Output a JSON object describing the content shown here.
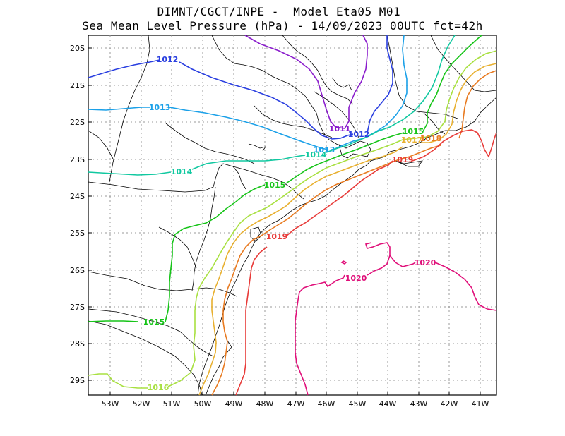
{
  "title_line1": "DIMNT/CGCT/INPE -  Model Eta05_M01_",
  "title_line2": "Sea Mean Level Pressure (hPa) - 14/09/2023 00UTC fct=42h",
  "axes": {
    "lat_labels": [
      "20S",
      "21S",
      "22S",
      "23S",
      "24S",
      "25S",
      "26S",
      "27S",
      "28S",
      "29S"
    ],
    "lon_labels": [
      "53W",
      "52W",
      "51W",
      "50W",
      "49W",
      "48W",
      "47W",
      "46W",
      "45W",
      "44W",
      "43W",
      "42W",
      "41W"
    ]
  },
  "colors": {
    "1011": "#8a1ccc",
    "1012": "#2a3fe0",
    "1013": "#1aa0e8",
    "1014": "#10c8a0",
    "1015": "#16c418",
    "1016": "#a8e040",
    "1017": "#e8b030",
    "1018": "#e87a20",
    "1019": "#e83a38",
    "1020": "#e0107a",
    "border": "#000000",
    "grid": "#9a9a9a"
  },
  "contour_labels": [
    {
      "key": "1011",
      "text": "1011"
    },
    {
      "key": "1012",
      "text": "1012"
    },
    {
      "key": "1012",
      "text": "1012"
    },
    {
      "key": "1013",
      "text": "1013"
    },
    {
      "key": "1013",
      "text": "1013"
    },
    {
      "key": "1014",
      "text": "1014"
    },
    {
      "key": "1014",
      "text": "1014"
    },
    {
      "key": "1015",
      "text": "1015"
    },
    {
      "key": "1015",
      "text": "1015"
    },
    {
      "key": "1015",
      "text": "1015"
    },
    {
      "key": "1016",
      "text": "1016"
    },
    {
      "key": "1017",
      "text": "1017"
    },
    {
      "key": "1018",
      "text": "1018"
    },
    {
      "key": "1019",
      "text": "1019"
    },
    {
      "key": "1019",
      "text": "1019"
    },
    {
      "key": "1020",
      "text": "1020"
    },
    {
      "key": "1020",
      "text": "1020"
    }
  ]
}
